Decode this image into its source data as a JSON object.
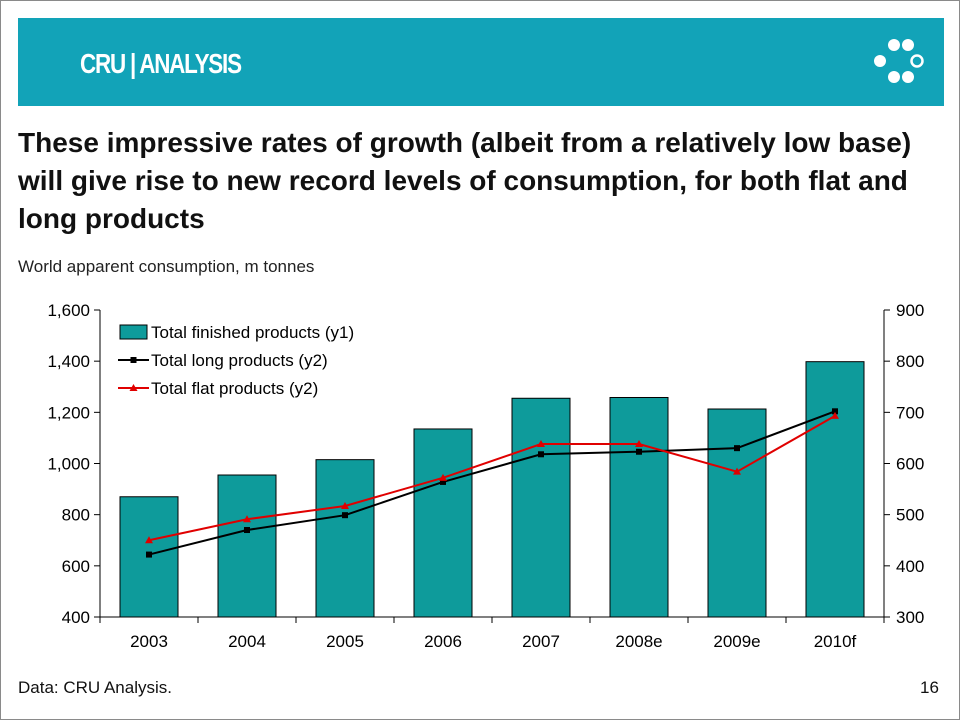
{
  "header": {
    "brand": "CRU | ANALYSIS"
  },
  "headline": "These impressive rates of growth (albeit from a relatively low base) will give rise to new record levels of consumption, for both flat and long products",
  "subtitle": "World apparent consumption, m tonnes",
  "footer": {
    "source": "Data: CRU Analysis.",
    "page_number": "16"
  },
  "colors": {
    "banner": "#12a3b8",
    "bars": "#0e9b9b",
    "long_line": "#000000",
    "flat_line": "#e00000"
  },
  "chart_data": {
    "type": "bar",
    "categories": [
      "2003",
      "2004",
      "2005",
      "2006",
      "2007",
      "2008e",
      "2009e",
      "2010f"
    ],
    "y1": {
      "min": 400,
      "max": 1600,
      "ticks": [
        "400",
        "600",
        "800",
        "1,000",
        "1,200",
        "1,400",
        "1,600"
      ],
      "tick_values": [
        400,
        600,
        800,
        1000,
        1200,
        1400,
        1600
      ]
    },
    "y2": {
      "min": 300,
      "max": 900,
      "ticks": [
        "300",
        "400",
        "500",
        "600",
        "700",
        "800",
        "900"
      ],
      "tick_values": [
        300,
        400,
        500,
        600,
        700,
        800,
        900
      ]
    },
    "series": [
      {
        "name": "Total finished products (y1)",
        "kind": "bar",
        "axis": "y1",
        "values": [
          870,
          955,
          1015,
          1135,
          1255,
          1258,
          1213,
          1398
        ]
      },
      {
        "name": "Total long products (y2)",
        "kind": "line",
        "axis": "y2",
        "marker": "square",
        "values": [
          422,
          470,
          499,
          564,
          618,
          623,
          630,
          702
        ]
      },
      {
        "name": "Total flat products (y2)",
        "kind": "line",
        "axis": "y2",
        "marker": "triangle",
        "values": [
          450,
          491,
          517,
          572,
          638,
          638,
          584,
          693
        ]
      }
    ],
    "legend_position": "top-left",
    "grid": false
  }
}
